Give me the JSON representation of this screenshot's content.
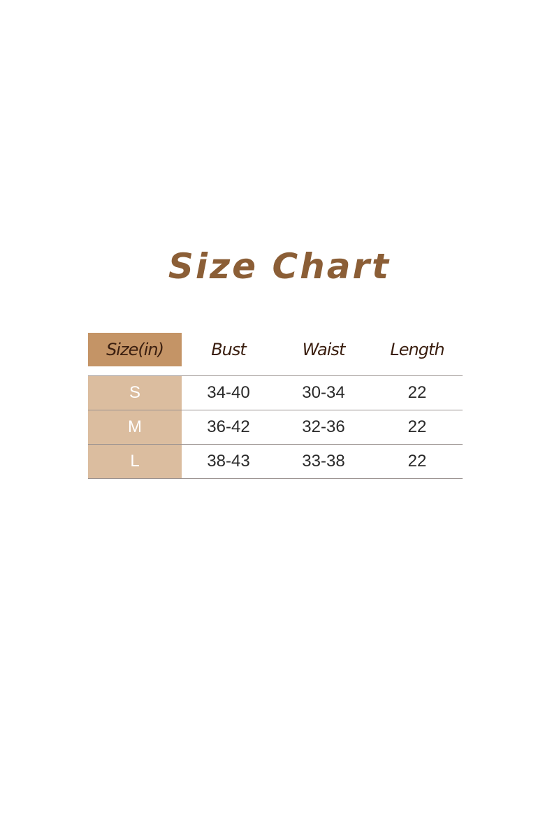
{
  "title": "Size Chart",
  "colors": {
    "title": "#8b5e36",
    "header_size_bg": "#c49466",
    "size_col_bg": "#dbbd9f",
    "header_text": "#3b1f10"
  },
  "table": {
    "headers": [
      "Size(in)",
      "Bust",
      "Waist",
      "Length"
    ],
    "rows": [
      [
        "S",
        "34-40",
        "30-34",
        "22"
      ],
      [
        "M",
        "36-42",
        "32-36",
        "22"
      ],
      [
        "L",
        "38-43",
        "33-38",
        "22"
      ]
    ]
  }
}
